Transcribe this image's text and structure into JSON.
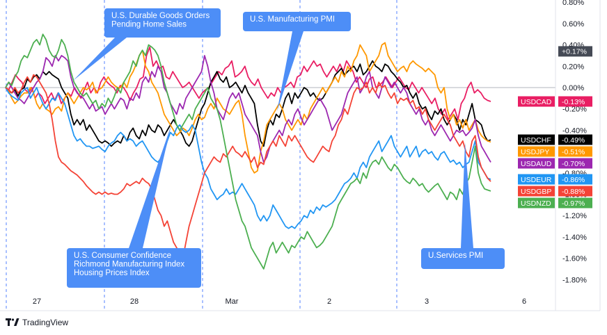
{
  "chart_data": {
    "type": "line",
    "x_ticks": [
      "27",
      "28",
      "Mar",
      "2",
      "3",
      "6"
    ],
    "y_ticks": [
      "0.80%",
      "0.60%",
      "0.40%",
      "0.20%",
      "0.00%",
      "-0.20%",
      "-0.40%",
      "-0.60%",
      "-0.80%",
      "-1.00%",
      "-1.20%",
      "-1.40%",
      "-1.60%",
      "-1.80%"
    ],
    "ylim": [
      -1.95,
      0.8
    ],
    "xlim": [
      0,
      158
    ],
    "grid": false,
    "series": [
      {
        "name": "USDCAD",
        "color": "#e91e63",
        "last": "-0.13%",
        "values": [
          0.0,
          -0.02,
          0.05,
          0.12,
          0.08,
          0.05,
          -0.02,
          -0.05,
          0.0,
          -0.1,
          -0.05,
          -0.08,
          -0.15,
          -0.1,
          -0.05,
          -0.12,
          -0.05,
          -0.15,
          -0.1,
          -0.05,
          -0.08,
          0.0,
          -0.05,
          -0.1,
          -0.02,
          0.05,
          -0.05,
          0.0,
          -0.05,
          0.05,
          0.1,
          0.05,
          0.02,
          0.0,
          -0.05,
          0.02,
          0.0,
          -0.05,
          -0.12,
          -0.05,
          0.0,
          0.08,
          0.1,
          0.3,
          0.38,
          0.2,
          0.25,
          0.18,
          0.2,
          0.1,
          0.08,
          0.15,
          0.1,
          0.05,
          0.0,
          0.02,
          0.05,
          0.0,
          -0.05,
          -0.1,
          -0.05,
          -0.02,
          0.0,
          0.05,
          0.1,
          0.15,
          0.12,
          0.18,
          0.2,
          0.25,
          0.1,
          0.12,
          0.15,
          0.2,
          0.1,
          0.05,
          0.02,
          0.08,
          0.0,
          -0.05,
          -0.1,
          -0.05,
          -0.08,
          0.0,
          -0.05,
          0.0,
          0.02,
          0.05,
          0.0,
          0.1,
          0.12,
          0.2,
          0.15,
          0.2,
          0.25,
          0.2,
          0.22,
          0.15,
          0.1,
          0.15,
          0.2,
          0.15,
          0.22,
          0.15,
          0.25,
          0.2,
          0.15,
          0.05,
          0.1,
          0.05,
          0.0,
          0.08,
          0.1,
          0.0,
          0.02,
          0.05,
          0.1,
          0.05,
          0.0,
          0.05,
          0.1,
          0.05,
          0.0,
          -0.02,
          0.05,
          0.0,
          -0.05,
          0.0,
          -0.05,
          -0.1,
          -0.15,
          -0.1,
          -0.2,
          -0.25,
          -0.2,
          -0.3,
          -0.25,
          -0.2,
          -0.3,
          -0.15,
          -0.1,
          0.0,
          0.05,
          -0.05,
          -0.02,
          -0.05,
          -0.1,
          -0.12,
          -0.13
        ]
      },
      {
        "name": "USDCHF",
        "color": "#000000",
        "last": "-0.49%",
        "values": [
          0.0,
          -0.03,
          -0.05,
          -0.02,
          -0.08,
          -0.02,
          0.0,
          0.08,
          0.05,
          0.1,
          0.12,
          0.08,
          0.15,
          0.12,
          0.15,
          0.12,
          0.1,
          0.08,
          0.0,
          -0.05,
          -0.1,
          -0.25,
          -0.35,
          -0.3,
          -0.35,
          -0.3,
          -0.4,
          -0.35,
          -0.4,
          -0.45,
          -0.5,
          -0.52,
          -0.5,
          -0.52,
          -0.55,
          -0.52,
          -0.5,
          -0.52,
          -0.45,
          -0.5,
          -0.42,
          -0.38,
          -0.45,
          -0.48,
          -0.4,
          -0.45,
          -0.35,
          -0.4,
          -0.42,
          -0.35,
          -0.38,
          -0.45,
          -0.4,
          -0.35,
          -0.3,
          -0.35,
          -0.4,
          -0.45,
          -0.52,
          -0.55,
          -0.5,
          -0.4,
          -0.3,
          -0.2,
          -0.15,
          -0.05,
          0.05,
          0.1,
          0.15,
          0.08,
          0.05,
          0.1,
          0.0,
          0.02,
          0.05,
          0.0,
          -0.05,
          0.02,
          -0.05,
          -0.1,
          -0.15,
          -0.35,
          -0.5,
          -0.55,
          -0.4,
          -0.3,
          -0.35,
          -0.25,
          -0.28,
          -0.2,
          -0.1,
          -0.05,
          -0.15,
          -0.05,
          -0.1,
          -0.05,
          0.0,
          -0.02,
          -0.08,
          -0.05,
          -0.1,
          -0.12,
          -0.1,
          -0.05,
          0.0,
          0.05,
          0.12,
          0.15,
          0.18,
          0.12,
          0.15,
          0.18,
          0.2,
          0.15,
          0.22,
          0.12,
          0.15,
          0.2,
          0.25,
          0.2,
          0.18,
          0.15,
          0.22,
          0.2,
          0.15,
          0.12,
          0.08,
          0.05,
          0.0,
          0.02,
          -0.05,
          -0.1,
          -0.05,
          -0.15,
          -0.2,
          -0.18,
          -0.25,
          -0.3,
          -0.22,
          -0.25,
          -0.2,
          -0.3,
          -0.35,
          -0.3,
          -0.25,
          -0.3,
          -0.4,
          -0.3,
          -0.35,
          -0.25,
          -0.15,
          -0.3,
          -0.32,
          -0.35,
          -0.45,
          -0.5,
          -0.49
        ]
      },
      {
        "name": "USDJPY",
        "color": "#ff9800",
        "last": "-0.51%",
        "values": [
          0.0,
          -0.03,
          -0.1,
          -0.15,
          -0.12,
          -0.08,
          -0.05,
          -0.05,
          0.0,
          -0.05,
          -0.15,
          -0.2,
          -0.15,
          -0.2,
          -0.22,
          -0.25,
          -0.2,
          -0.18,
          -0.22,
          -0.1,
          -0.05,
          -0.1,
          -0.15,
          -0.1,
          -0.05,
          0.0,
          -0.02,
          0.0,
          0.05,
          -0.05,
          -0.02,
          0.0,
          0.05,
          0.1,
          0.05,
          0.02,
          0.0,
          0.0,
          0.05,
          0.0,
          0.1,
          0.15,
          0.22,
          0.3,
          0.35,
          0.2,
          0.15,
          0.05,
          0.0,
          -0.05,
          -0.15,
          -0.25,
          -0.3,
          -0.35,
          -0.4,
          -0.45,
          -0.42,
          -0.38,
          -0.4,
          -0.45,
          -0.38,
          -0.3,
          -0.25,
          -0.3,
          -0.28,
          -0.2,
          -0.15,
          -0.2,
          -0.1,
          -0.15,
          -0.2,
          -0.22,
          -0.25,
          -0.2,
          -0.15,
          -0.12,
          -0.25,
          -0.45,
          -0.6,
          -0.75,
          -0.8,
          -0.78,
          -0.6,
          -0.5,
          -0.35,
          -0.3,
          -0.25,
          -0.2,
          -0.15,
          -0.2,
          -0.3,
          -0.35,
          -0.4,
          -0.35,
          -0.3,
          -0.35,
          -0.25,
          -0.3,
          -0.2,
          -0.15,
          -0.1,
          -0.05,
          0.0,
          -0.05,
          0.0,
          0.05,
          0.1,
          0.05,
          0.15,
          0.1,
          0.2,
          0.15,
          0.25,
          0.3,
          0.4,
          0.35,
          0.3,
          0.15,
          0.2,
          0.25,
          0.3,
          0.4,
          0.42,
          0.3,
          0.25,
          0.2,
          0.15,
          0.18,
          0.2,
          0.15,
          0.22,
          0.25,
          0.22,
          0.2,
          0.18,
          0.15,
          0.18,
          0.15,
          0.12,
          0.0,
          -0.05,
          0.0,
          -0.2,
          -0.3,
          -0.25,
          -0.35,
          -0.3,
          -0.38,
          -0.3,
          -0.4,
          -0.35,
          -0.3,
          -0.4,
          -0.45,
          -0.48,
          -0.5,
          -0.51
        ]
      },
      {
        "name": "USDAUD",
        "color": "#9c27b0",
        "last": "-0.70%",
        "values": [
          0.0,
          0.05,
          0.0,
          -0.05,
          -0.1,
          -0.12,
          -0.15,
          -0.1,
          -0.05,
          0.0,
          0.05,
          0.08,
          0.15,
          0.28,
          0.25,
          0.2,
          0.3,
          0.25,
          0.3,
          0.28,
          0.25,
          0.1,
          0.0,
          -0.05,
          -0.08,
          -0.1,
          -0.15,
          -0.2,
          -0.15,
          -0.22,
          -0.2,
          -0.18,
          -0.25,
          -0.2,
          -0.15,
          -0.2,
          -0.15,
          -0.1,
          -0.12,
          -0.2,
          -0.1,
          -0.12,
          -0.05,
          -0.1,
          0.05,
          0.1,
          0.05,
          0.15,
          0.1,
          0.2,
          0.15,
          0.0,
          -0.05,
          -0.15,
          -0.2,
          -0.25,
          -0.15,
          -0.2,
          -0.1,
          -0.05,
          0.0,
          0.05,
          0.1,
          0.15,
          0.3,
          0.2,
          0.05,
          -0.05,
          -0.2,
          -0.25,
          -0.3,
          -0.2,
          -0.1,
          -0.05,
          -0.1,
          -0.05,
          -0.15,
          -0.25,
          -0.3,
          -0.35,
          -0.4,
          -0.45,
          -0.6,
          -0.7,
          -0.65,
          -0.55,
          -0.5,
          -0.45,
          -0.4,
          -0.45,
          -0.35,
          -0.3,
          -0.35,
          -0.25,
          -0.2,
          -0.28,
          -0.35,
          -0.3,
          -0.25,
          -0.2,
          -0.15,
          -0.1,
          -0.15,
          -0.2,
          -0.3,
          -0.4,
          -0.35,
          -0.3,
          -0.25,
          -0.15,
          -0.05,
          0.0,
          0.05,
          0.1,
          -0.05,
          0.0,
          0.1,
          0.15,
          0.0,
          -0.05,
          -0.1,
          0.0,
          0.1,
          0.05,
          0.0,
          0.05,
          0.0,
          -0.05,
          0.0,
          -0.05,
          -0.15,
          -0.2,
          -0.25,
          -0.2,
          -0.3,
          -0.35,
          -0.3,
          -0.4,
          -0.45,
          -0.4,
          -0.35,
          -0.4,
          -0.45,
          -0.5,
          -0.45,
          -0.4,
          -0.42,
          -0.4,
          -0.45,
          -0.42,
          -0.38,
          -0.3,
          -0.45,
          -0.55,
          -0.6,
          -0.65,
          -0.7
        ]
      },
      {
        "name": "USDEUR",
        "color": "#2196f3",
        "last": "-0.86%",
        "values": [
          0.0,
          -0.05,
          -0.08,
          -0.1,
          -0.12,
          -0.05,
          -0.02,
          0.0,
          -0.1,
          -0.05,
          0.0,
          -0.08,
          -0.15,
          -0.2,
          -0.15,
          -0.1,
          -0.12,
          -0.05,
          -0.1,
          -0.15,
          -0.25,
          -0.35,
          -0.45,
          -0.5,
          -0.48,
          -0.52,
          -0.55,
          -0.55,
          -0.57,
          -0.56,
          -0.55,
          -0.58,
          -0.6,
          -0.55,
          -0.52,
          -0.5,
          -0.45,
          -0.42,
          -0.45,
          -0.5,
          -0.48,
          -0.5,
          -0.55,
          -0.52,
          -0.5,
          -0.55,
          -0.6,
          -0.65,
          -0.68,
          -0.7,
          -0.66,
          -0.6,
          -0.5,
          -0.42,
          -0.45,
          -0.38,
          -0.35,
          -0.4,
          -0.42,
          -0.4,
          -0.35,
          -0.4,
          -0.55,
          -0.7,
          -0.8,
          -0.85,
          -0.95,
          -1.0,
          -1.05,
          -1.02,
          -1.0,
          -0.95,
          -1.0,
          -0.98,
          -1.0,
          -0.95,
          -0.9,
          -0.95,
          -1.0,
          -1.05,
          -1.1,
          -1.2,
          -1.25,
          -1.2,
          -1.25,
          -1.2,
          -1.1,
          -1.15,
          -1.2,
          -1.25,
          -1.3,
          -1.32,
          -1.3,
          -1.32,
          -1.28,
          -1.25,
          -1.2,
          -1.22,
          -1.15,
          -1.18,
          -1.12,
          -1.15,
          -1.1,
          -1.12,
          -1.1,
          -1.08,
          -1.05,
          -1.0,
          -0.95,
          -0.9,
          -0.88,
          -0.85,
          -0.8,
          -0.85,
          -0.75,
          -0.7,
          -0.75,
          -0.65,
          -0.6,
          -0.55,
          -0.5,
          -0.6,
          -0.55,
          -0.5,
          -0.45,
          -0.55,
          -0.6,
          -0.65,
          -0.6,
          -0.55,
          -0.65,
          -0.6,
          -0.55,
          -0.65,
          -0.6,
          -0.58,
          -0.62,
          -0.6,
          -0.65,
          -0.68,
          -0.62,
          -0.6,
          -0.65,
          -0.7,
          -0.68,
          -0.72,
          -0.7,
          -0.75,
          -0.72,
          -0.7,
          -0.6,
          -0.5,
          -0.7,
          -0.75,
          -0.8,
          -0.85,
          -0.86
        ]
      },
      {
        "name": "USDGBP",
        "color": "#f44336",
        "last": "-0.88%",
        "values": [
          0.0,
          -0.02,
          -0.05,
          0.0,
          -0.05,
          -0.02,
          0.05,
          0.1,
          0.05,
          0.12,
          0.1,
          0.05,
          0.0,
          -0.05,
          -0.15,
          -0.3,
          -0.5,
          -0.65,
          -0.7,
          -0.72,
          -0.75,
          -0.78,
          -0.8,
          -0.82,
          -0.85,
          -0.88,
          -0.92,
          -0.95,
          -0.98,
          -1.0,
          -0.98,
          -1.0,
          -0.98,
          -1.0,
          -0.99,
          -1.0,
          -1.0,
          -0.98,
          -0.95,
          -0.9,
          -0.92,
          -0.9,
          -0.88,
          -0.9,
          -0.85,
          -0.88,
          -0.9,
          -0.95,
          -1.05,
          -1.15,
          -1.2,
          -1.3,
          -1.25,
          -1.35,
          -1.45,
          -1.5,
          -1.55,
          -1.6,
          -1.45,
          -1.3,
          -1.2,
          -1.1,
          -1.0,
          -0.9,
          -0.8,
          -0.75,
          -0.7,
          -0.65,
          -0.68,
          -0.7,
          -0.62,
          -0.65,
          -0.6,
          -0.55,
          -0.6,
          -0.62,
          -0.65,
          -0.6,
          -0.65,
          -0.7,
          -0.65,
          -0.75,
          -0.7,
          -0.72,
          -0.6,
          -0.55,
          -0.5,
          -0.55,
          -0.45,
          -0.5,
          -0.55,
          -0.45,
          -0.5,
          -0.45,
          -0.5,
          -0.55,
          -0.6,
          -0.65,
          -0.68,
          -0.7,
          -0.65,
          -0.6,
          -0.55,
          -0.58,
          -0.6,
          -0.5,
          -0.45,
          -0.35,
          -0.3,
          -0.2,
          -0.25,
          -0.15,
          -0.05,
          0.0,
          -0.02,
          0.0,
          0.05,
          -0.05,
          0.0,
          -0.05,
          0.05,
          0.0,
          0.02,
          -0.05,
          -0.1,
          -0.05,
          -0.15,
          -0.1,
          -0.12,
          -0.1,
          -0.15,
          -0.12,
          -0.2,
          -0.18,
          -0.25,
          -0.2,
          -0.3,
          -0.35,
          -0.4,
          -0.35,
          -0.3,
          -0.25,
          -0.3,
          -0.35,
          -0.45,
          -0.5,
          -0.55,
          -0.5,
          -0.6,
          -0.65,
          -0.5,
          -0.45,
          -0.65,
          -0.75,
          -0.8,
          -0.85,
          -0.88
        ]
      },
      {
        "name": "USDNZD",
        "color": "#4caf50",
        "last": "-0.97%",
        "values": [
          0.0,
          0.05,
          0.02,
          0.1,
          0.15,
          0.25,
          0.3,
          0.28,
          0.35,
          0.42,
          0.45,
          0.4,
          0.5,
          0.45,
          0.35,
          0.3,
          0.28,
          0.35,
          0.45,
          0.4,
          0.3,
          0.15,
          0.05,
          0.0,
          -0.05,
          -0.08,
          -0.05,
          -0.1,
          -0.15,
          -0.12,
          -0.2,
          -0.15,
          -0.18,
          -0.1,
          -0.15,
          -0.08,
          0.0,
          -0.05,
          0.05,
          0.1,
          0.15,
          0.25,
          0.2,
          0.3,
          0.35,
          0.3,
          0.4,
          0.38,
          0.35,
          0.3,
          0.2,
          0.05,
          -0.05,
          -0.15,
          -0.25,
          -0.35,
          -0.4,
          -0.35,
          -0.3,
          -0.25,
          -0.3,
          -0.2,
          -0.15,
          -0.1,
          -0.05,
          0.0,
          -0.1,
          -0.15,
          -0.2,
          -0.3,
          -0.45,
          -0.6,
          -0.75,
          -0.9,
          -1.05,
          -1.15,
          -1.25,
          -1.3,
          -1.4,
          -1.5,
          -1.55,
          -1.6,
          -1.65,
          -1.7,
          -1.6,
          -1.5,
          -1.45,
          -1.55,
          -1.5,
          -1.45,
          -1.5,
          -1.55,
          -1.48,
          -1.5,
          -1.45,
          -1.4,
          -1.42,
          -1.35,
          -1.4,
          -1.45,
          -1.5,
          -1.48,
          -1.45,
          -1.4,
          -1.35,
          -1.3,
          -1.2,
          -1.1,
          -1.05,
          -1.0,
          -0.95,
          -0.9,
          -0.88,
          -0.85,
          -0.9,
          -0.8,
          -0.85,
          -0.75,
          -0.7,
          -0.68,
          -0.72,
          -0.65,
          -0.7,
          -0.75,
          -0.78,
          -0.72,
          -0.75,
          -0.8,
          -0.85,
          -0.88,
          -0.9,
          -0.85,
          -0.88,
          -0.92,
          -0.9,
          -0.95,
          -0.98,
          -0.95,
          -0.92,
          -0.9,
          -0.95,
          -1.0,
          -1.05,
          -0.98,
          -1.0,
          -1.05,
          -0.95,
          -1.0,
          -0.9,
          -0.85,
          -0.7,
          -0.55,
          -0.8,
          -0.9,
          -0.95,
          -0.96,
          -0.97
        ]
      }
    ],
    "price_tag": "+0.17%",
    "price_tag_value": 0.17,
    "zero_label": "0.00%",
    "event_lines_x": [
      9,
      150,
      291,
      431,
      570
    ],
    "annotations": [
      {
        "lines": [
          "U.S. Durable Goods Orders",
          "Pending Home Sales"
        ]
      },
      {
        "lines": [
          "U.S. Manufacturing PMI"
        ]
      },
      {
        "lines": [
          "U.S. Consumer Confidence",
          "Richmond Manufacturing Index",
          "Housing Prices Index"
        ]
      },
      {
        "lines": [
          "U.Services PMI"
        ]
      }
    ]
  },
  "branding": {
    "name": "TradingView"
  }
}
